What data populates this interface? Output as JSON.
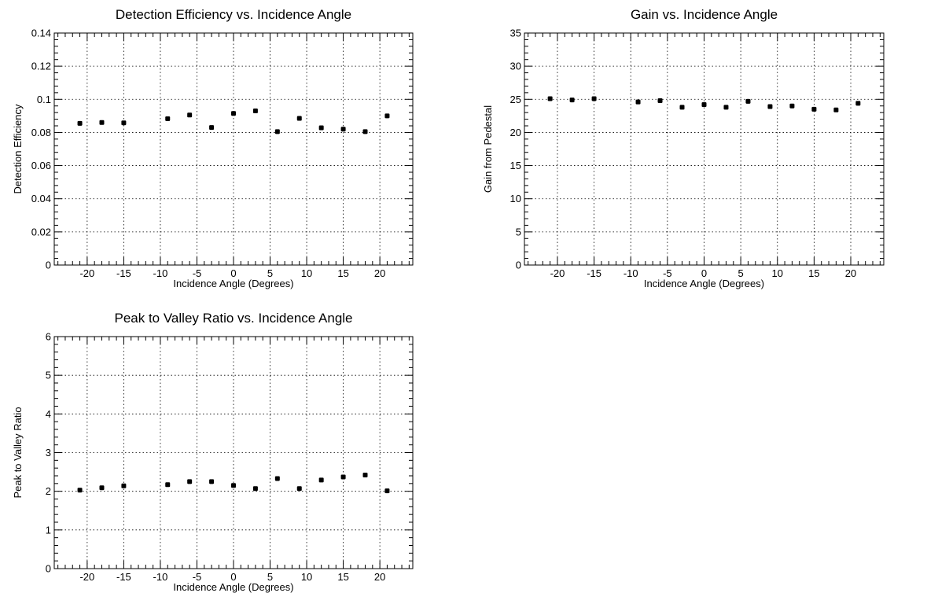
{
  "chart_data": [
    {
      "type": "scatter",
      "title": "Detection Efficiency vs. Incidence Angle",
      "xlabel": "Incidence Angle (Degrees)",
      "ylabel": "Detection Efficiency",
      "xlim": [
        -24.5,
        24.5
      ],
      "ylim": [
        0,
        0.14
      ],
      "xticks": [
        -20,
        -15,
        -10,
        -5,
        0,
        5,
        10,
        15,
        20
      ],
      "xticklabels": [
        "-20",
        "-15",
        "-10",
        "-5",
        "0",
        "5",
        "10",
        "15",
        "20"
      ],
      "yticks": [
        0,
        0.02,
        0.04,
        0.06,
        0.08,
        0.1,
        0.12,
        0.14
      ],
      "yticklabels": [
        "0",
        "0.02",
        "0.04",
        "0.06",
        "0.08",
        "0.1",
        "0.12",
        "0.14"
      ],
      "grid": true,
      "x": [
        -21,
        -18,
        -15,
        -9,
        -6,
        -3,
        0,
        3,
        6,
        9,
        12,
        15,
        18,
        21
      ],
      "y": [
        0.0855,
        0.086,
        0.0858,
        0.0883,
        0.0905,
        0.083,
        0.0915,
        0.093,
        0.0805,
        0.0885,
        0.0828,
        0.082,
        0.0805,
        0.09
      ]
    },
    {
      "type": "scatter",
      "title": "Gain vs. Incidence Angle",
      "xlabel": "Incidence Angle (Degrees)",
      "ylabel": "Gain from Pedestal",
      "xlim": [
        -24.5,
        24.5
      ],
      "ylim": [
        0,
        35
      ],
      "xticks": [
        -20,
        -15,
        -10,
        -5,
        0,
        5,
        10,
        15,
        20
      ],
      "xticklabels": [
        "-20",
        "-15",
        "-10",
        "-5",
        "0",
        "5",
        "10",
        "15",
        "20"
      ],
      "yticks": [
        0,
        5,
        10,
        15,
        20,
        25,
        30,
        35
      ],
      "yticklabels": [
        "0",
        "5",
        "10",
        "15",
        "20",
        "25",
        "30",
        "35"
      ],
      "grid": true,
      "x": [
        -21,
        -18,
        -15,
        -9,
        -6,
        -3,
        0,
        3,
        6,
        9,
        12,
        15,
        18,
        21
      ],
      "y": [
        25.1,
        24.9,
        25.1,
        24.6,
        24.8,
        23.8,
        24.2,
        23.8,
        24.7,
        23.9,
        24.0,
        23.5,
        23.4,
        24.4
      ]
    },
    {
      "type": "scatter",
      "title": "Peak to Valley Ratio vs. Incidence Angle",
      "xlabel": "Incidence Angle (Degrees)",
      "ylabel": "Peak to Valley Ratio",
      "xlim": [
        -24.5,
        24.5
      ],
      "ylim": [
        0,
        6
      ],
      "xticks": [
        -20,
        -15,
        -10,
        -5,
        0,
        5,
        10,
        15,
        20
      ],
      "xticklabels": [
        "-20",
        "-15",
        "-10",
        "-5",
        "0",
        "5",
        "10",
        "15",
        "20"
      ],
      "yticks": [
        0,
        1,
        2,
        3,
        4,
        5,
        6
      ],
      "yticklabels": [
        "0",
        "1",
        "2",
        "3",
        "4",
        "5",
        "6"
      ],
      "grid": true,
      "x": [
        -21,
        -18,
        -15,
        -9,
        -6,
        -3,
        0,
        3,
        6,
        9,
        12,
        15,
        18,
        21
      ],
      "y": [
        2.03,
        2.09,
        2.14,
        2.17,
        2.25,
        2.25,
        2.15,
        2.07,
        2.33,
        2.07,
        2.29,
        2.37,
        2.42,
        2.01
      ]
    }
  ]
}
